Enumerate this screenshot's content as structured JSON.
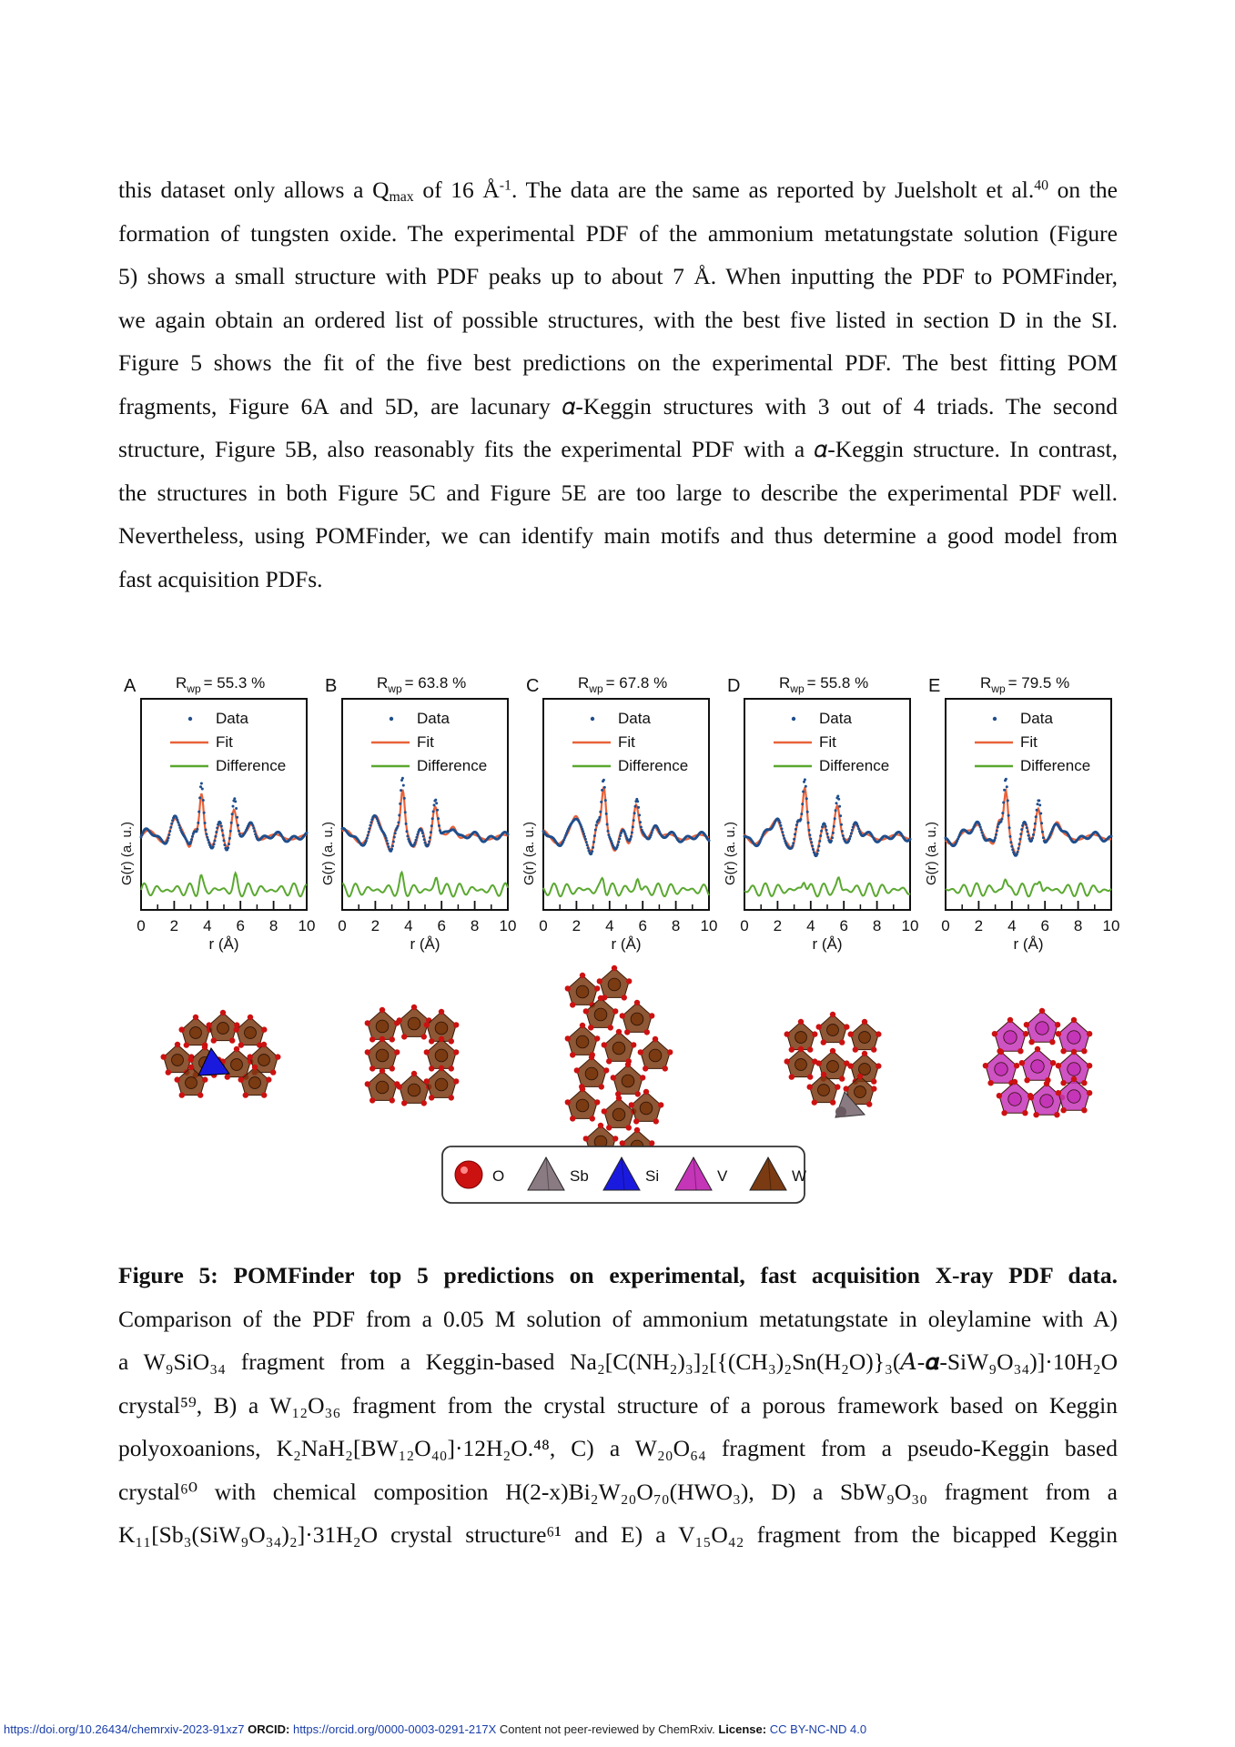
{
  "paragraph": {
    "l1": {
      "a": "this dataset only allows a Q",
      "a_sub": "max",
      "b": " of 16 Å",
      "b_sup": "-1",
      "c": ". The data are the same as reported by Juelsholt et al.",
      "c_sup": "40",
      "d": " on the"
    },
    "l2": "formation of tungsten oxide. The experimental PDF of the ammonium metatungstate solution (Figure",
    "l3": "5) shows a small structure with PDF peaks up to about 7 Å. When inputting the PDF to POMFinder,",
    "l4": "we again obtain an ordered list of possible structures, with the best five listed in section D in the SI.",
    "l5": "Figure 5 shows the fit of the five best predictions on the experimental PDF. The best fitting POM",
    "l6": "fragments, Figure 6A and 5D, are lacunary 𝛼-Keggin structures with 3 out of 4 triads. The second",
    "l7": "structure, Figure 5B, also reasonably fits the experimental PDF with a 𝛼-Keggin structure. In contrast,",
    "l8": "the structures in both Figure 5C and Figure 5E are too large to describe the experimental PDF well.",
    "l9": "Nevertheless, using POMFinder, we can identify main motifs and thus determine a good model from",
    "l10": "fast acquisition PDFs."
  },
  "figure": {
    "panels": [
      {
        "letter": "A",
        "rwp_value": "= 55.3 %"
      },
      {
        "letter": "B",
        "rwp_value": "= 63.8 %"
      },
      {
        "letter": "C",
        "rwp_value": "= 67.8 %"
      },
      {
        "letter": "D",
        "rwp_value": "= 55.8 %"
      },
      {
        "letter": "E",
        "rwp_value": "= 79.5 %"
      }
    ],
    "rwp_main": "R",
    "rwp_sub": "wp",
    "legend": {
      "data": "Data",
      "fit": "Fit",
      "difference": "Difference"
    },
    "ylabel": "G(r) (a. u.)",
    "xlabel": "r (Å)",
    "xticks": [
      "0",
      "2",
      "4",
      "6",
      "8",
      "10"
    ],
    "atom_legend": [
      "O",
      "Sb",
      "Si",
      "V",
      "W"
    ],
    "colors": {
      "data": "#1f4e8c",
      "fit": "#e8623a",
      "difference": "#5aa830",
      "O": "#cc1111",
      "Sb": "#8a7a82",
      "Si": "#1a1adf",
      "V": "#c535b8",
      "W": "#7a3a12"
    }
  },
  "caption": {
    "title": "Figure 5: POMFinder top 5 predictions on experimental, fast acquisition X-ray PDF data.",
    "l2": "Comparison of the PDF from a 0.05 M solution of ammonium metatungstate in oleylamine with A)",
    "l3": "a W₉SiO₃₄ fragment from a Keggin-based Na₂[C(NH₂)₃]₂[{(CH₃)₂Sn(H₂O)}₃(𝐴-𝜶-SiW₉O₃₄)]·10H₂O",
    "l4": "crystal⁵⁹, B) a W₁₂O₃₆ fragment from the crystal structure of a porous framework based on Keggin",
    "l5": "polyoxoanions, K₂NaH₂[BW₁₂O₄₀]·12H₂O.⁴⁸, C) a W₂₀O₆₄ fragment from a pseudo-Keggin based",
    "l6": "crystal⁶⁰ with chemical composition H(2-x)Bi₂W₂₀O₇₀(HWO₃), D) a SbW₉O₃₀ fragment from a",
    "l7": "K₁₁[Sb₃(SiW₉O₃₄)₂]·31H₂O crystal structure⁶¹ and E) a V₁₅O₄₂ fragment from the bicapped Keggin"
  },
  "footer": {
    "doi": "https://doi.org/10.26434/chemrxiv-2023-91xz7",
    "orcid_label": "ORCID:",
    "orcid": "https://orcid.org/0000-0003-0291-217X",
    "note": "Content not peer-reviewed by ChemRxiv.",
    "license_label": "License:",
    "license": "CC BY-NC-ND 4.0"
  }
}
